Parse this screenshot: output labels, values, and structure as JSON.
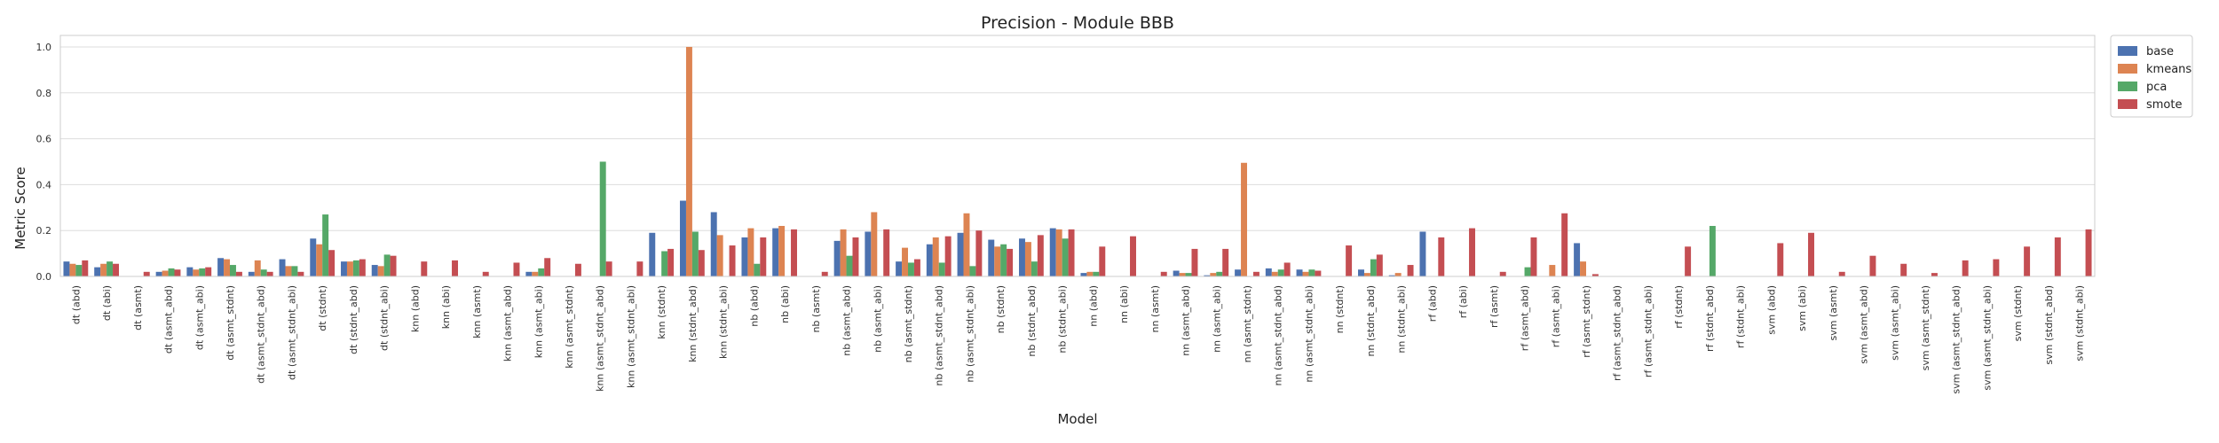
{
  "chart_data": {
    "type": "bar",
    "title": "Precision - Module BBB",
    "xlabel": "Model",
    "ylabel": "Metric Score",
    "ylim": [
      0,
      1.05
    ],
    "yticks": [
      "0.0",
      "0.2",
      "0.4",
      "0.6",
      "0.8",
      "1.0"
    ],
    "grid": "horizontal",
    "legend_position": "outside-top-right",
    "categories": [
      "dt (abd)",
      "dt (abi)",
      "dt (asmt)",
      "dt (asmt_abd)",
      "dt (asmt_abi)",
      "dt (asmt_stdnt)",
      "dt (asmt_stdnt_abd)",
      "dt (asmt_stdnt_abi)",
      "dt (stdnt)",
      "dt (stdnt_abd)",
      "dt (stdnt_abi)",
      "knn (abd)",
      "knn (abi)",
      "knn (asmt)",
      "knn (asmt_abd)",
      "knn (asmt_abi)",
      "knn (asmt_stdnt)",
      "knn (asmt_stdnt_abd)",
      "knn (asmt_stdnt_abi)",
      "knn (stdnt)",
      "knn (stdnt_abd)",
      "knn (stdnt_abi)",
      "nb (abd)",
      "nb (abi)",
      "nb (asmt)",
      "nb (asmt_abd)",
      "nb (asmt_abi)",
      "nb (asmt_stdnt)",
      "nb (asmt_stdnt_abd)",
      "nb (asmt_stdnt_abi)",
      "nb (stdnt)",
      "nb (stdnt_abd)",
      "nb (stdnt_abi)",
      "nn (abd)",
      "nn (abi)",
      "nn (asmt)",
      "nn (asmt_abd)",
      "nn (asmt_abi)",
      "nn (asmt_stdnt)",
      "nn (asmt_stdnt_abd)",
      "nn (asmt_stdnt_abi)",
      "nn (stdnt)",
      "nn (stdnt_abd)",
      "nn (stdnt_abi)",
      "rf (abd)",
      "rf (abi)",
      "rf (asmt)",
      "rf (asmt_abd)",
      "rf (asmt_abi)",
      "rf (asmt_stdnt)",
      "rf (asmt_stdnt_abd)",
      "rf (asmt_stdnt_abi)",
      "rf (stdnt)",
      "rf (stdnt_abd)",
      "rf (stdnt_abi)",
      "svm (abd)",
      "svm (abi)",
      "svm (asmt)",
      "svm (asmt_abd)",
      "svm (asmt_abi)",
      "svm (asmt_stdnt)",
      "svm (asmt_stdnt_abd)",
      "svm (asmt_stdnt_abi)",
      "svm (stdnt)",
      "svm (stdnt_abd)",
      "svm (stdnt_abi)"
    ],
    "series": [
      {
        "name": "base",
        "color": "#4c72b0",
        "values": [
          0.065,
          0.04,
          0,
          0.02,
          0.04,
          0.08,
          0.02,
          0.075,
          0.165,
          0.065,
          0.05,
          0,
          0,
          0,
          0,
          0.02,
          0,
          0,
          0,
          0.19,
          0.33,
          0.28,
          0.17,
          0.21,
          0,
          0.155,
          0.195,
          0.065,
          0.14,
          0.19,
          0.16,
          0.165,
          0.21,
          0.015,
          0,
          0,
          0.025,
          0.005,
          0.03,
          0.035,
          0.03,
          0,
          0.03,
          0.005,
          0.195,
          0,
          0,
          0,
          0,
          0.145,
          0,
          0,
          0,
          0,
          0,
          0,
          0,
          0,
          0,
          0,
          0,
          0,
          0,
          0,
          0,
          0
        ]
      },
      {
        "name": "kmeans",
        "color": "#dd8452",
        "values": [
          0.055,
          0.055,
          0,
          0.025,
          0.03,
          0.075,
          0.07,
          0.045,
          0.14,
          0.065,
          0.045,
          0,
          0,
          0,
          0,
          0.02,
          0,
          0,
          0,
          0,
          1.0,
          0.18,
          0.21,
          0.22,
          0,
          0.205,
          0.28,
          0.125,
          0.17,
          0.275,
          0.13,
          0.15,
          0.205,
          0.02,
          0,
          0,
          0.015,
          0.015,
          0.495,
          0.02,
          0.02,
          0,
          0.015,
          0.015,
          0,
          0,
          0,
          0,
          0.05,
          0.065,
          0,
          0,
          0,
          0,
          0,
          0,
          0,
          0,
          0,
          0,
          0,
          0,
          0,
          0,
          0,
          0
        ]
      },
      {
        "name": "pca",
        "color": "#55a868",
        "values": [
          0.05,
          0.065,
          0,
          0.035,
          0.035,
          0.05,
          0.03,
          0.045,
          0.27,
          0.07,
          0.095,
          0,
          0,
          0,
          0,
          0.035,
          0,
          0.5,
          0,
          0.11,
          0.195,
          0,
          0.055,
          0,
          0,
          0.09,
          0,
          0.06,
          0.06,
          0.045,
          0.14,
          0.065,
          0.165,
          0.02,
          0,
          0,
          0.015,
          0.02,
          0,
          0.03,
          0.03,
          0,
          0.075,
          0,
          0,
          0,
          0,
          0.04,
          0,
          0,
          0,
          0,
          0,
          0.22,
          0,
          0,
          0,
          0,
          0,
          0,
          0,
          0,
          0,
          0,
          0,
          0
        ]
      },
      {
        "name": "smote",
        "color": "#c44e52",
        "values": [
          0.07,
          0.055,
          0.02,
          0.03,
          0.04,
          0.02,
          0.02,
          0.02,
          0.115,
          0.075,
          0.09,
          0.065,
          0.07,
          0.02,
          0.06,
          0.08,
          0.055,
          0.065,
          0.065,
          0.12,
          0.115,
          0.135,
          0.17,
          0.205,
          0.02,
          0.17,
          0.205,
          0.075,
          0.175,
          0.2,
          0.12,
          0.18,
          0.205,
          0.13,
          0.175,
          0.02,
          0.12,
          0.12,
          0.02,
          0.06,
          0.025,
          0.135,
          0.095,
          0.05,
          0.17,
          0.21,
          0.02,
          0.17,
          0.275,
          0.01,
          0,
          0,
          0.13,
          0,
          0,
          0.145,
          0.19,
          0.02,
          0.09,
          0.055,
          0.015,
          0.07,
          0.075,
          0.13,
          0.17,
          0.205
        ]
      }
    ]
  }
}
